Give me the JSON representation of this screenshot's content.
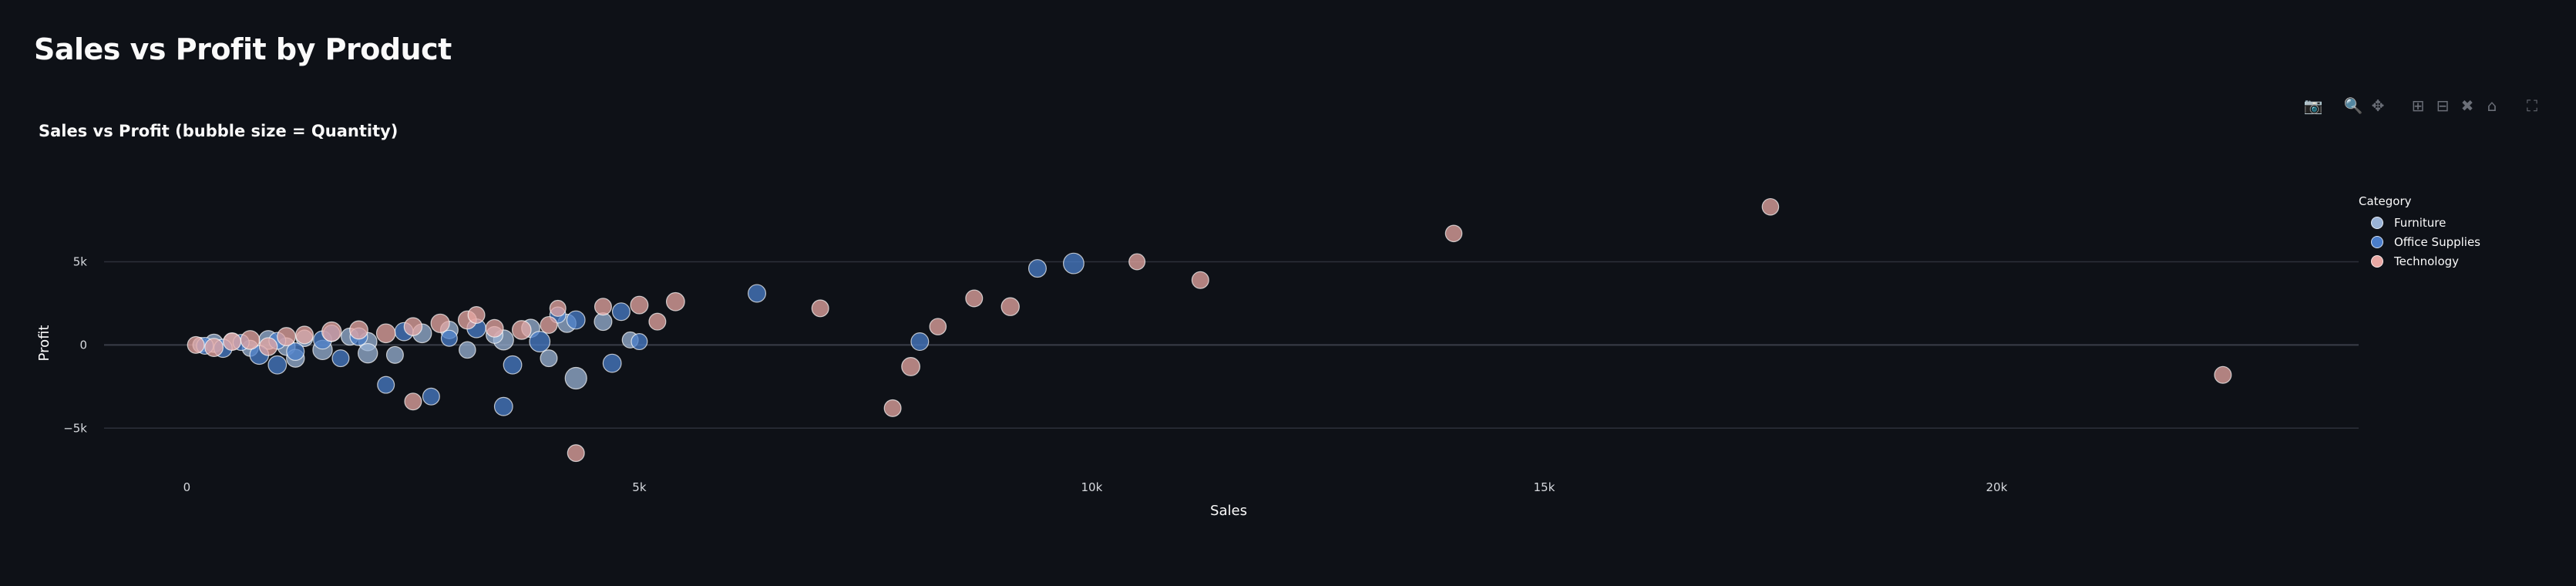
{
  "page_title": "Sales vs Profit by Product",
  "modebar": {
    "icons": [
      "camera-icon",
      "zoom-icon",
      "pan-icon",
      "zoom-in-icon",
      "zoom-out-icon",
      "autoscale-icon",
      "reset-axes-icon",
      "fullscreen-icon"
    ]
  },
  "colors": {
    "background": "#0e1117",
    "grid": "#2c303a",
    "Furniture": "#9ab3d6",
    "Office Supplies": "#4a7dc9",
    "Technology": "#e8a8a4"
  },
  "chart_data": {
    "type": "scatter",
    "title": "Sales vs Profit (bubble size = Quantity)",
    "xlabel": "Sales",
    "ylabel": "Profit",
    "xlim": [
      -1000,
      24000
    ],
    "ylim": [
      -8000,
      11000
    ],
    "x_ticks": [
      0,
      5000,
      10000,
      15000,
      20000
    ],
    "x_tick_labels": [
      "0",
      "5k",
      "10k",
      "15k",
      "20k"
    ],
    "y_ticks": [
      -5000,
      0,
      5000
    ],
    "y_tick_labels": [
      "−5k",
      "0",
      "5k"
    ],
    "grid": true,
    "legend_title": "Category",
    "legend_position": "top-right",
    "series": [
      {
        "name": "Furniture",
        "points": [
          [
            150,
            0,
            20
          ],
          [
            300,
            100,
            40
          ],
          [
            500,
            200,
            30
          ],
          [
            700,
            -200,
            25
          ],
          [
            900,
            300,
            45
          ],
          [
            1100,
            -100,
            35
          ],
          [
            1300,
            400,
            28
          ],
          [
            1500,
            -300,
            50
          ],
          [
            1800,
            500,
            32
          ],
          [
            2000,
            200,
            40
          ],
          [
            2300,
            -600,
            30
          ],
          [
            2600,
            700,
            45
          ],
          [
            2900,
            900,
            35
          ],
          [
            3100,
            -300,
            28
          ],
          [
            3500,
            300,
            55
          ],
          [
            3800,
            1000,
            40
          ],
          [
            4000,
            -800,
            30
          ],
          [
            4300,
            -2000,
            70
          ],
          [
            4600,
            1400,
            35
          ],
          [
            4900,
            300,
            25
          ],
          [
            1200,
            -800,
            38
          ],
          [
            2000,
            -500,
            50
          ],
          [
            3400,
            600,
            30
          ],
          [
            4200,
            1300,
            40
          ]
        ]
      },
      {
        "name": "Office Supplies",
        "points": [
          [
            200,
            -50,
            30
          ],
          [
            400,
            -200,
            40
          ],
          [
            600,
            150,
            25
          ],
          [
            800,
            -600,
            45
          ],
          [
            1000,
            250,
            30
          ],
          [
            1200,
            -400,
            35
          ],
          [
            1500,
            300,
            40
          ],
          [
            1700,
            -800,
            30
          ],
          [
            1900,
            500,
            35
          ],
          [
            2200,
            -2400,
            30
          ],
          [
            2400,
            800,
            40
          ],
          [
            2700,
            -3100,
            30
          ],
          [
            2900,
            400,
            25
          ],
          [
            3200,
            1000,
            45
          ],
          [
            3500,
            -3700,
            40
          ],
          [
            3600,
            -1200,
            40
          ],
          [
            3900,
            200,
            60
          ],
          [
            4100,
            1800,
            25
          ],
          [
            4300,
            1500,
            40
          ],
          [
            4700,
            -1100,
            40
          ],
          [
            4800,
            2000,
            35
          ],
          [
            5000,
            200,
            25
          ],
          [
            6300,
            3100,
            35
          ],
          [
            8100,
            200,
            35
          ],
          [
            9400,
            4600,
            35
          ],
          [
            9800,
            4900,
            60
          ],
          [
            1000,
            -1200,
            40
          ],
          [
            1600,
            700,
            28
          ]
        ]
      },
      {
        "name": "Technology",
        "points": [
          [
            100,
            0,
            30
          ],
          [
            300,
            -150,
            40
          ],
          [
            500,
            200,
            35
          ],
          [
            700,
            300,
            45
          ],
          [
            900,
            -100,
            38
          ],
          [
            1100,
            500,
            40
          ],
          [
            1300,
            600,
            35
          ],
          [
            1600,
            800,
            50
          ],
          [
            1900,
            900,
            40
          ],
          [
            2200,
            700,
            45
          ],
          [
            2500,
            1100,
            38
          ],
          [
            2800,
            1300,
            42
          ],
          [
            3100,
            1500,
            40
          ],
          [
            3400,
            1000,
            35
          ],
          [
            3700,
            900,
            45
          ],
          [
            4000,
            1200,
            30
          ],
          [
            4100,
            2200,
            25
          ],
          [
            4300,
            -6500,
            30
          ],
          [
            4600,
            2300,
            30
          ],
          [
            5000,
            2400,
            35
          ],
          [
            5200,
            1400,
            30
          ],
          [
            5400,
            2600,
            40
          ],
          [
            7000,
            2200,
            30
          ],
          [
            7800,
            -3800,
            30
          ],
          [
            8000,
            -1300,
            40
          ],
          [
            8300,
            1100,
            28
          ],
          [
            8700,
            2800,
            30
          ],
          [
            9100,
            2300,
            38
          ],
          [
            10500,
            5000,
            25
          ],
          [
            11200,
            3900,
            30
          ],
          [
            14000,
            6700,
            28
          ],
          [
            17500,
            8300,
            28
          ],
          [
            22500,
            -1800,
            30
          ],
          [
            2500,
            -3400,
            30
          ],
          [
            3200,
            1800,
            30
          ]
        ]
      }
    ]
  }
}
